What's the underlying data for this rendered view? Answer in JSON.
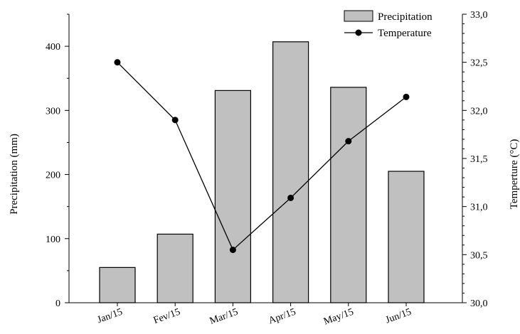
{
  "chart_data": {
    "type": "bar",
    "categories": [
      "Jan/15",
      "Fev/15",
      "Mar/15",
      "Apr/15",
      "May/15",
      "Jun/15"
    ],
    "series": [
      {
        "name": "Precipitation",
        "type": "bar",
        "axis": "left",
        "values": [
          55,
          107,
          331,
          407,
          336,
          205
        ]
      },
      {
        "name": "Temperature",
        "type": "line",
        "axis": "right",
        "values": [
          32.5,
          31.9,
          30.55,
          31.09,
          31.68,
          32.14
        ]
      }
    ],
    "ylabel": "Precipitation  (mm)",
    "y2label": "Temperture (°C)",
    "ylim": [
      0,
      450
    ],
    "y2lim": [
      30.0,
      33.0
    ],
    "yticks": [
      "0",
      "100",
      "200",
      "300",
      "400"
    ],
    "y2ticks": [
      "30,0",
      "30,5",
      "31,0",
      "31,5",
      "32,0",
      "32,5",
      "33,0"
    ],
    "legend_position": "top-right",
    "grid": false,
    "colors": {
      "bar_fill": "#c0c0c0",
      "bar_stroke": "#000000",
      "line": "#000000"
    }
  }
}
